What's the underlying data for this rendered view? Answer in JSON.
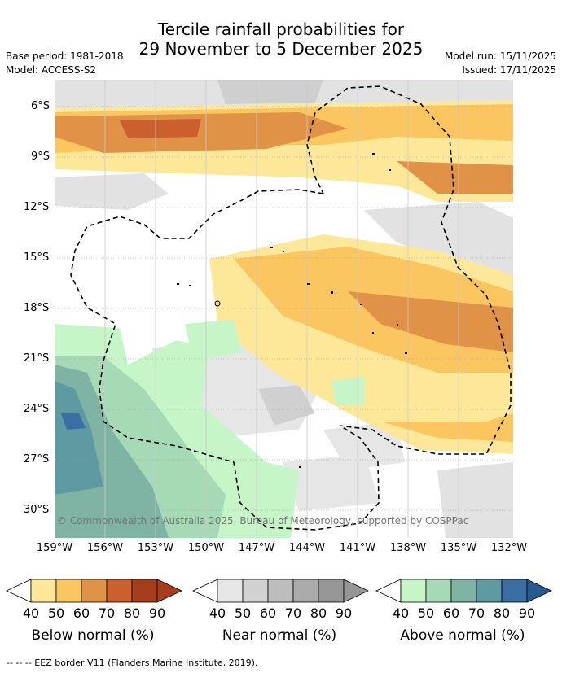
{
  "title": {
    "line1": "Tercile rainfall probabilities for",
    "line2": "29 November to 5 December 2025"
  },
  "meta": {
    "base_period": "Base period: 1981-2018",
    "model": "Model: ACCESS-S2",
    "model_run": "Model run: 15/11/2025",
    "issued": "Issued: 17/11/2025"
  },
  "axes": {
    "lat_labels": [
      "6°S",
      "9°S",
      "12°S",
      "15°S",
      "18°S",
      "21°S",
      "24°S",
      "27°S",
      "30°S"
    ],
    "lon_labels": [
      "159°W",
      "156°W",
      "153°W",
      "150°W",
      "147°W",
      "144°W",
      "141°W",
      "138°W",
      "135°W",
      "132°W"
    ]
  },
  "credit": "© Commonwealth of Australia 2025, Bureau of Meteorology, supported by COSPPac",
  "legends": [
    {
      "label": "Below normal (%)",
      "ticks": [
        "40",
        "50",
        "60",
        "70",
        "80",
        "90"
      ],
      "colors": [
        "#fde89a",
        "#fbc55f",
        "#e09247",
        "#cc5f2e",
        "#a63d1c",
        "#a63d1c"
      ]
    },
    {
      "label": "Near normal (%)",
      "ticks": [
        "40",
        "50",
        "60",
        "70",
        "80",
        "90"
      ],
      "colors": [
        "#e6e6e6",
        "#d2d2d2",
        "#bdbdbd",
        "#aaaaaa",
        "#969696",
        "#969696"
      ]
    },
    {
      "label": "Above normal (%)",
      "ticks": [
        "40",
        "50",
        "60",
        "70",
        "80",
        "90"
      ],
      "colors": [
        "#c6f5c8",
        "#a6d9b5",
        "#7fb3a4",
        "#5f9aa3",
        "#3b6fa4",
        "#285a8f"
      ]
    }
  ],
  "footer": "--  --  -- EEZ border V11 (Flanders Marine Institute, 2019)."
}
